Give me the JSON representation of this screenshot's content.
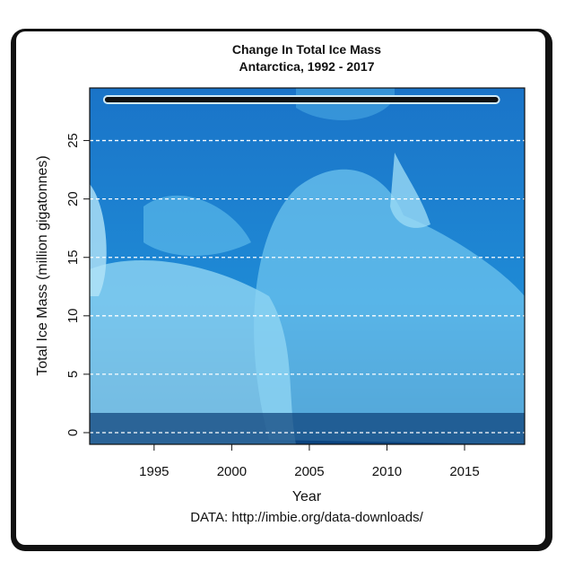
{
  "chart_data": {
    "type": "line",
    "title": "Change In Total Ice Mass",
    "subtitle": "Antarctica, 1992 - 2017",
    "xlabel": "Year",
    "ylabel": "Total Ice Mass (million gigatonnes)",
    "source": "DATA: http://imbie.org/data-downloads/",
    "x": [
      1992,
      1993,
      1994,
      1995,
      1996,
      1997,
      1998,
      1999,
      2000,
      2001,
      2002,
      2003,
      2004,
      2005,
      2006,
      2007,
      2008,
      2009,
      2010,
      2011,
      2012,
      2013,
      2014,
      2015,
      2016,
      2017
    ],
    "series": [
      {
        "color": "#111111",
        "values": [
          28.5,
          28.5,
          28.5,
          28.5,
          28.5,
          28.5,
          28.5,
          28.5,
          28.5,
          28.5,
          28.5,
          28.5,
          28.5,
          28.5,
          28.5,
          28.5,
          28.5,
          28.5,
          28.5,
          28.5,
          28.5,
          28.5,
          28.5,
          28.5,
          28.5,
          28.5
        ]
      }
    ],
    "xlim": [
      1990.85,
      2018.87
    ],
    "ylim": [
      -1,
      29.5
    ],
    "xticks": [
      1995,
      2000,
      2005,
      2010,
      2015
    ],
    "yticks": [
      0,
      5,
      10,
      15,
      20,
      25
    ],
    "grid": true
  }
}
